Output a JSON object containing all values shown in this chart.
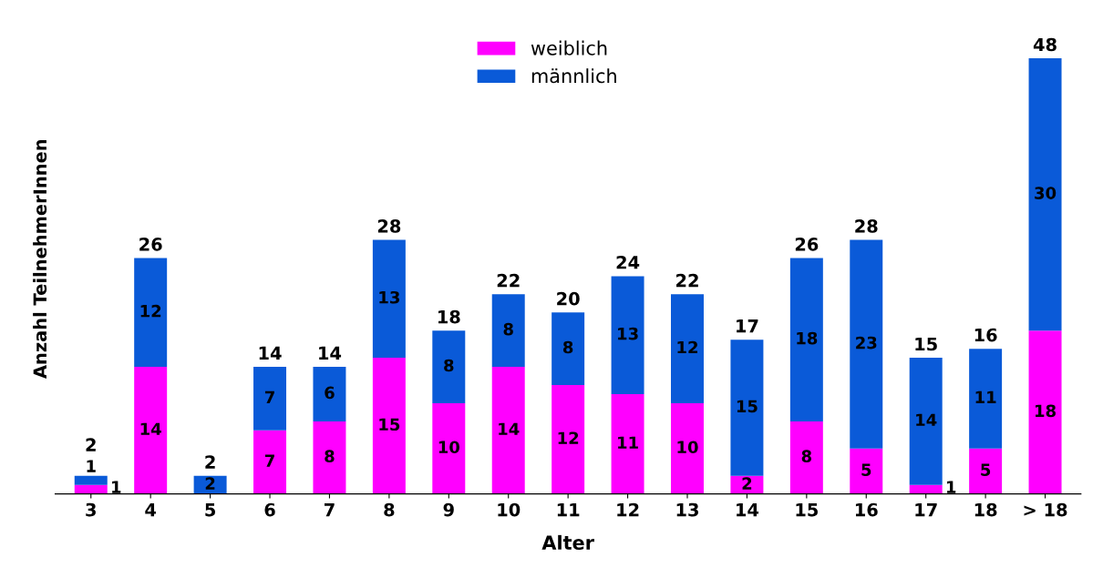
{
  "chart_data": {
    "type": "bar",
    "stacked": true,
    "xlabel": "Alter",
    "ylabel": "Anzahl TeilnehmerInnen",
    "tick_labels": "x",
    "legend": "top",
    "grid": false,
    "categories": [
      "3",
      "4",
      "5",
      "6",
      "7",
      "8",
      "9",
      "10",
      "11",
      "12",
      "13",
      "14",
      "15",
      "16",
      "17",
      "18",
      "> 18"
    ],
    "series": [
      {
        "name": "weiblich",
        "color": "#ff00ff",
        "values": [
          1,
          14,
          0,
          7,
          8,
          15,
          10,
          14,
          12,
          11,
          10,
          2,
          8,
          5,
          1,
          5,
          18
        ],
        "value_labels": [
          "1",
          "14",
          null,
          "7",
          "8",
          "15",
          "10",
          "14",
          "12",
          "11",
          "10",
          "2",
          "8",
          "5",
          "1",
          "5",
          "18"
        ]
      },
      {
        "name": "männlich",
        "color": "#0a5ad8",
        "values": [
          1,
          12,
          2,
          7,
          6,
          13,
          8,
          8,
          8,
          13,
          12,
          15,
          18,
          23,
          14,
          11,
          30
        ],
        "value_labels": [
          "1",
          "12",
          "2",
          "7",
          "6",
          "13",
          "8",
          "8",
          "8",
          "13",
          "12",
          "15",
          "18",
          "23",
          "14",
          "11",
          "30"
        ]
      }
    ],
    "totals": [
      "2",
      "26",
      "2",
      "14",
      "14",
      "28",
      "18",
      "22",
      "20",
      "24",
      "22",
      "17",
      "26",
      "28",
      "15",
      "16",
      "48"
    ]
  }
}
